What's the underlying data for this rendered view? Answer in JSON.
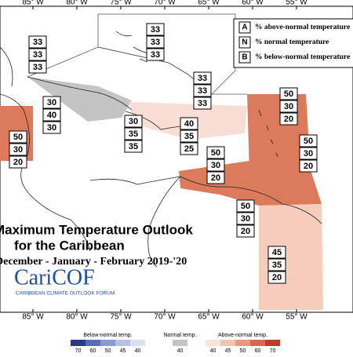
{
  "title": {
    "line1": "Maximum Temperature Outlook",
    "line2": "for the Caribbean",
    "line3": "December - January - February 2019-'20"
  },
  "logo": {
    "name": "CariCOF",
    "subtitle": "CARIBBEAN CLIMATE OUTLOOK FORUM"
  },
  "longitudes": [
    "85° W",
    "80° W",
    "75° W",
    "70° W",
    "65° W",
    "60° W",
    "55° W"
  ],
  "key": [
    {
      "letter": "A",
      "text": "% above-normal temperature"
    },
    {
      "letter": "N",
      "text": "% normal temperature"
    },
    {
      "letter": "B",
      "text": "% below-normal temperature"
    }
  ],
  "regions": [
    {
      "values": [
        33,
        33,
        33
      ]
    },
    {
      "values": [
        33,
        33,
        33
      ]
    },
    {
      "values": [
        33,
        33,
        33
      ]
    },
    {
      "values": [
        30,
        40,
        30
      ]
    },
    {
      "values": [
        30,
        35,
        35
      ]
    },
    {
      "values": [
        40,
        35,
        25
      ]
    },
    {
      "values": [
        50,
        30,
        20
      ]
    },
    {
      "values": [
        50,
        30,
        20
      ]
    },
    {
      "values": [
        50,
        30,
        20
      ]
    },
    {
      "values": [
        50,
        30,
        20
      ]
    },
    {
      "values": [
        50,
        30,
        20
      ]
    },
    {
      "values": [
        45,
        35,
        20
      ]
    }
  ],
  "colorbar": [
    {
      "title": "Below-normal temp.",
      "labels": [
        70,
        60,
        50,
        45,
        40
      ],
      "colors": [
        "#2b3a80",
        "#5a6cb8",
        "#8c9ad0",
        "#b8c0e2",
        "#dde1f1"
      ]
    },
    {
      "title": "Normal temp.",
      "labels": [
        40
      ],
      "colors": [
        "#c4c4c4"
      ]
    },
    {
      "title": "Above-normal temp.",
      "labels": [
        40,
        45,
        50,
        60,
        70
      ],
      "colors": [
        "#fbe4dc",
        "#f5c2b0",
        "#e89a80",
        "#d66c4e",
        "#b8402a"
      ]
    }
  ]
}
